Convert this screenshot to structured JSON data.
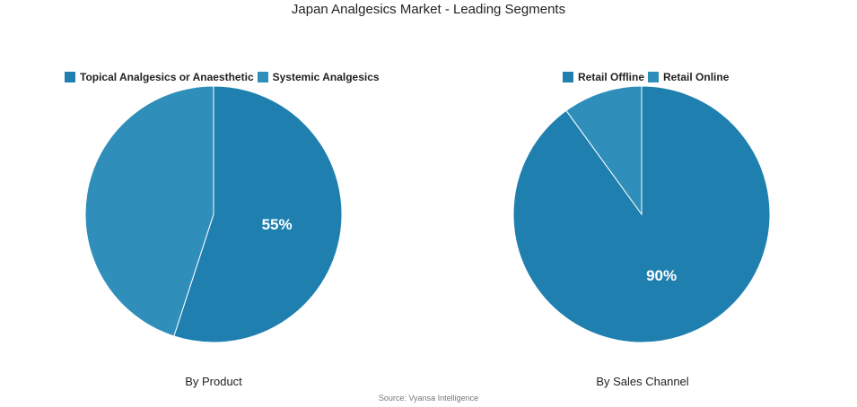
{
  "title": "Japan Analgesics Market - Leading Segments",
  "source": "Source: Vyansa Intelligence",
  "chart_data": [
    {
      "type": "pie",
      "caption": "By Product",
      "slices": [
        {
          "name": "Topical Analgesics or Anaesthetic",
          "value": 55,
          "label": "55%",
          "color": "#1f80b0"
        },
        {
          "name": "Systemic Analgesics",
          "value": 45,
          "label": "",
          "color": "#2f8fba"
        }
      ]
    },
    {
      "type": "pie",
      "caption": "By Sales Channel",
      "slices": [
        {
          "name": "Retail Offline",
          "value": 90,
          "label": "90%",
          "color": "#1f80b0"
        },
        {
          "name": "Retail Online",
          "value": 10,
          "label": "",
          "color": "#2f8fba"
        }
      ]
    }
  ]
}
